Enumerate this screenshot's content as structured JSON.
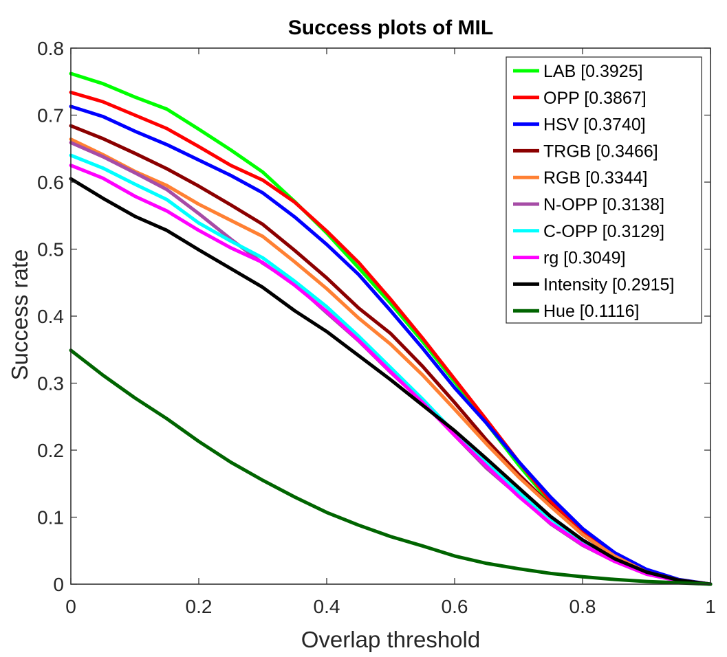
{
  "chart_data": {
    "type": "line",
    "title": "Success plots of MIL",
    "xlabel": "Overlap threshold",
    "ylabel": "Success rate",
    "xlim": [
      0,
      1
    ],
    "ylim": [
      0,
      0.8
    ],
    "xticks": [
      0,
      0.2,
      0.4,
      0.6,
      0.8,
      1
    ],
    "xtick_labels": [
      "0",
      "0.2",
      "0.4",
      "0.6",
      "0.8",
      "1"
    ],
    "yticks": [
      0,
      0.1,
      0.2,
      0.3,
      0.4,
      0.5,
      0.6,
      0.7,
      0.8
    ],
    "ytick_labels": [
      "0",
      "0.1",
      "0.2",
      "0.3",
      "0.4",
      "0.5",
      "0.6",
      "0.7",
      "0.8"
    ],
    "grid": false,
    "legend_position": "top-right",
    "x": [
      0,
      0.05,
      0.1,
      0.15,
      0.2,
      0.25,
      0.3,
      0.35,
      0.4,
      0.45,
      0.5,
      0.55,
      0.6,
      0.65,
      0.7,
      0.75,
      0.8,
      0.85,
      0.9,
      0.95,
      1.0
    ],
    "series": [
      {
        "name": "LAB [0.3925]",
        "color": "#00ff00",
        "values": [
          0.762,
          0.747,
          0.727,
          0.709,
          0.679,
          0.648,
          0.615,
          0.571,
          0.524,
          0.472,
          0.419,
          0.362,
          0.302,
          0.24,
          0.178,
          0.121,
          0.077,
          0.043,
          0.018,
          0.006,
          0.0
        ]
      },
      {
        "name": "OPP [0.3867]",
        "color": "#ff0000",
        "values": [
          0.734,
          0.72,
          0.7,
          0.68,
          0.653,
          0.625,
          0.603,
          0.57,
          0.527,
          0.48,
          0.425,
          0.367,
          0.306,
          0.245,
          0.183,
          0.124,
          0.079,
          0.044,
          0.02,
          0.006,
          0.0
        ]
      },
      {
        "name": "HSV [0.3740]",
        "color": "#0000ff",
        "values": [
          0.713,
          0.698,
          0.676,
          0.656,
          0.633,
          0.61,
          0.584,
          0.548,
          0.507,
          0.462,
          0.408,
          0.352,
          0.293,
          0.24,
          0.183,
          0.13,
          0.083,
          0.047,
          0.022,
          0.007,
          0.0
        ]
      },
      {
        "name": "TRGB [0.3466]",
        "color": "#8b0000",
        "values": [
          0.684,
          0.665,
          0.643,
          0.62,
          0.594,
          0.566,
          0.537,
          0.498,
          0.457,
          0.412,
          0.374,
          0.325,
          0.271,
          0.215,
          0.164,
          0.117,
          0.074,
          0.041,
          0.018,
          0.006,
          0.0
        ]
      },
      {
        "name": "RGB [0.3344]",
        "color": "#ff8033",
        "values": [
          0.664,
          0.641,
          0.616,
          0.595,
          0.567,
          0.543,
          0.519,
          0.481,
          0.441,
          0.397,
          0.358,
          0.312,
          0.261,
          0.209,
          0.16,
          0.116,
          0.074,
          0.042,
          0.018,
          0.006,
          0.0
        ]
      },
      {
        "name": "N-OPP [0.3138]",
        "color": "#a64ca6",
        "values": [
          0.659,
          0.638,
          0.614,
          0.589,
          0.553,
          0.515,
          0.479,
          0.448,
          0.405,
          0.363,
          0.316,
          0.272,
          0.222,
          0.173,
          0.132,
          0.09,
          0.058,
          0.034,
          0.015,
          0.005,
          0.0
        ]
      },
      {
        "name": "C-OPP [0.3129]",
        "color": "#00ffff",
        "values": [
          0.64,
          0.621,
          0.597,
          0.574,
          0.539,
          0.512,
          0.487,
          0.452,
          0.414,
          0.37,
          0.323,
          0.276,
          0.226,
          0.18,
          0.137,
          0.098,
          0.062,
          0.036,
          0.016,
          0.005,
          0.0
        ]
      },
      {
        "name": "rg [0.3049]",
        "color": "#ff00ff",
        "values": [
          0.625,
          0.606,
          0.579,
          0.557,
          0.528,
          0.502,
          0.48,
          0.446,
          0.407,
          0.364,
          0.317,
          0.271,
          0.222,
          0.176,
          0.131,
          0.091,
          0.059,
          0.034,
          0.015,
          0.005,
          0.0
        ]
      },
      {
        "name": "Intensity [0.2915]",
        "color": "#000000",
        "values": [
          0.605,
          0.576,
          0.549,
          0.528,
          0.499,
          0.471,
          0.443,
          0.408,
          0.377,
          0.341,
          0.305,
          0.267,
          0.229,
          0.187,
          0.144,
          0.101,
          0.066,
          0.038,
          0.018,
          0.006,
          0.0
        ]
      },
      {
        "name": "Hue [0.1116]",
        "color": "#006400",
        "values": [
          0.349,
          0.312,
          0.278,
          0.247,
          0.213,
          0.182,
          0.155,
          0.13,
          0.107,
          0.088,
          0.071,
          0.057,
          0.042,
          0.031,
          0.023,
          0.016,
          0.011,
          0.007,
          0.004,
          0.002,
          0.0
        ]
      }
    ]
  }
}
